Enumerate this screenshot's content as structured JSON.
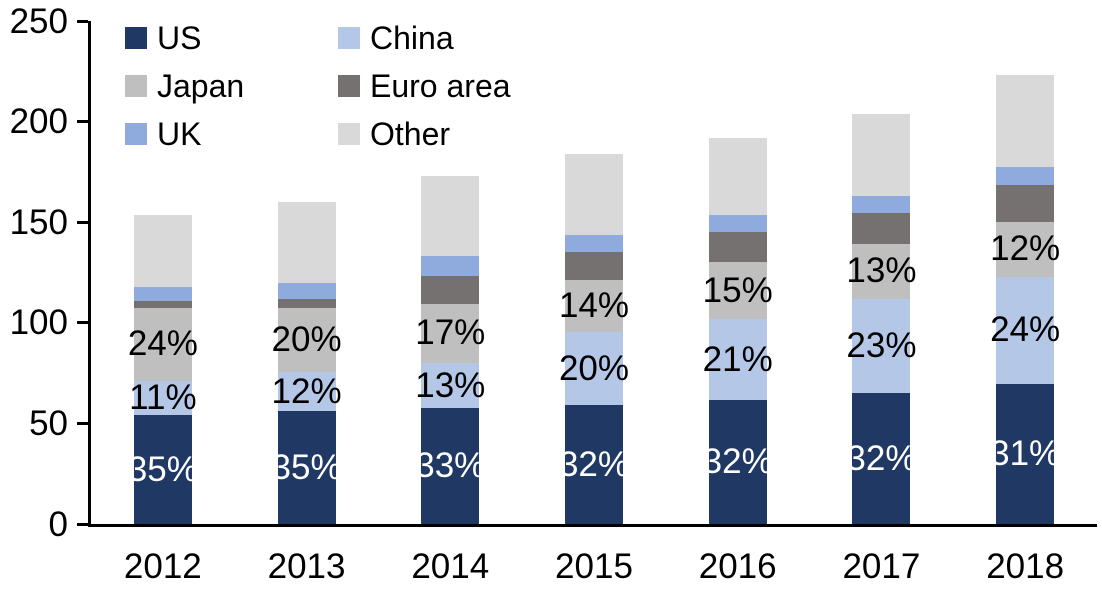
{
  "chart_data": {
    "type": "bar",
    "stacked": true,
    "categories": [
      "2012",
      "2013",
      "2014",
      "2015",
      "2016",
      "2017",
      "2018"
    ],
    "series": [
      {
        "name": "US",
        "color": "#1F3864",
        "values": [
          54,
          56,
          57.5,
          59,
          61.5,
          65,
          69.5
        ],
        "labels": [
          "35%",
          "35%",
          "33%",
          "32%",
          "32%",
          "32%",
          "31%"
        ],
        "label_color": "#FFFFFF"
      },
      {
        "name": "China",
        "color": "#B4C7E7",
        "values": [
          17,
          19.5,
          22.5,
          36.5,
          40.5,
          47,
          53.5
        ],
        "labels": [
          "11%",
          "12%",
          "13%",
          "20%",
          "21%",
          "23%",
          "24%"
        ],
        "label_color": "#000000"
      },
      {
        "name": "Japan",
        "color": "#BFBFBF",
        "values": [
          36.5,
          32,
          29.5,
          26,
          28,
          27,
          27
        ],
        "labels": [
          "24%",
          "20%",
          "17%",
          "14%",
          "15%",
          "13%",
          "12%"
        ],
        "label_color": "#000000"
      },
      {
        "name": "Euro area",
        "color": "#767171",
        "values": [
          3.5,
          4.5,
          14,
          13.5,
          15,
          15.5,
          18.5
        ]
      },
      {
        "name": "UK",
        "color": "#8FAADC",
        "values": [
          7,
          8,
          9.5,
          8.5,
          8.5,
          8.5,
          9
        ]
      },
      {
        "name": "Other",
        "color": "#D9D9D9",
        "values": [
          35.5,
          40,
          40,
          40.5,
          38.5,
          41,
          45.5
        ]
      }
    ],
    "totals": [
      153.5,
      160,
      173,
      184,
      192,
      204,
      223
    ],
    "title": "",
    "xlabel": "",
    "ylabel": "",
    "ylim": [
      0,
      250
    ],
    "yticks": [
      0,
      50,
      100,
      150,
      200,
      250
    ],
    "grid": false,
    "legend": {
      "position": "top-left",
      "columns": 2,
      "entries": [
        "US",
        "China",
        "Japan",
        "Euro area",
        "UK",
        "Other"
      ]
    },
    "colors": {
      "background": "#FFFFFF",
      "axis": "#000000",
      "text": "#000000"
    }
  }
}
